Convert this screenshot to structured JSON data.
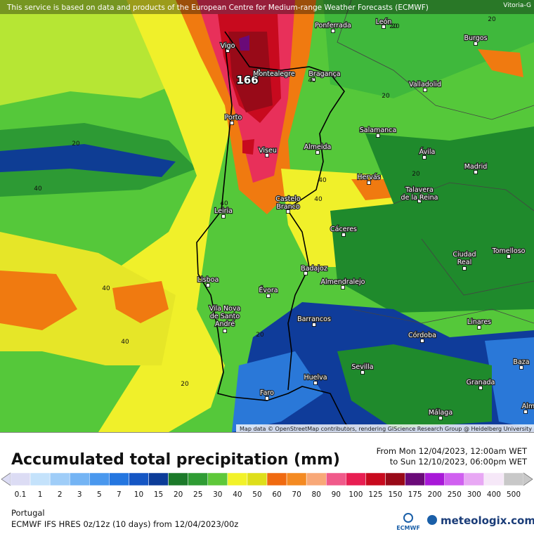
{
  "header": {
    "notice": "This service is based on data and products of the European Centre for Medium-range Weather Forecasts (ECMWF)",
    "corner_label": "Vitoria-G"
  },
  "map": {
    "places": [
      [
        "Vigo"
      ],
      [
        "Ponferrada"
      ],
      [
        "León"
      ],
      [
        "Burgos"
      ],
      [
        "Montealegre"
      ],
      [
        "Bragança"
      ],
      [
        "Valladolid"
      ],
      [
        "Porto"
      ],
      [
        "Salamanca"
      ],
      [
        "Almeida"
      ],
      [
        "Viseu"
      ],
      [
        "Ávila"
      ],
      [
        "Madrid"
      ],
      [
        "Hervás"
      ],
      [
        "Talavera",
        "de la Reina"
      ],
      [
        "Castelo",
        "Branco"
      ],
      [
        "Leiria"
      ],
      [
        "Cáceres"
      ],
      [
        "Ciudad",
        "Real"
      ],
      [
        "Tomelloso"
      ],
      [
        "Badajoz"
      ],
      [
        "Almendralejo"
      ],
      [
        "Lisboa"
      ],
      [
        "Évora"
      ],
      [
        "Vila Nova",
        "de Santo",
        "André"
      ],
      [
        "Barrancos"
      ],
      [
        "Linares"
      ],
      [
        "Córdoba"
      ],
      [
        "Baza"
      ],
      [
        "Sevilla"
      ],
      [
        "Huelva"
      ],
      [
        "Granada"
      ],
      [
        "Faro"
      ],
      [
        "Málaga"
      ],
      [
        "Alm"
      ]
    ],
    "max_label": "166",
    "contour_labels": [
      "20",
      "20",
      "20",
      "20",
      "20",
      "20",
      "20",
      "40",
      "40",
      "40",
      "40",
      "40",
      "40",
      "40",
      "20"
    ],
    "attribution": "Map data © OpenStreetMap contributors, rendering GIScience Research Group @ Heidelberg University"
  },
  "panel": {
    "title": "Accumulated total precipitation (mm)",
    "from": "From Mon 12/04/2023, 12:00am WET",
    "to": "to Sun 12/10/2023, 06:00pm WET",
    "legend": {
      "labels": [
        "0.1",
        "1",
        "2",
        "3",
        "5",
        "7",
        "10",
        "15",
        "20",
        "25",
        "30",
        "40",
        "50",
        "60",
        "70",
        "80",
        "90",
        "100",
        "125",
        "150",
        "175",
        "200",
        "250",
        "300",
        "400",
        "500"
      ],
      "colors": [
        "#dcdcf4",
        "#c4e2fb",
        "#9fcdf8",
        "#74b4f4",
        "#4a98ee",
        "#2476e0",
        "#1556c4",
        "#0c3c98",
        "#1c7a2a",
        "#2f9c34",
        "#5ec83a",
        "#f2f22a",
        "#dede1a",
        "#f06a10",
        "#f48a22",
        "#f8a878",
        "#f05a8a",
        "#e81e52",
        "#c80a1e",
        "#980a18",
        "#6a0a78",
        "#a818d8",
        "#d060f0",
        "#e8a8f4",
        "#f6e8f8",
        "#c8c8c8"
      ]
    },
    "region": "Portugal",
    "model": "ECMWF IFS HRES 0z/12z (10 days) from 12/04/2023/00z",
    "logo_left": "ECMWF",
    "logo_right": "meteologix.com"
  }
}
